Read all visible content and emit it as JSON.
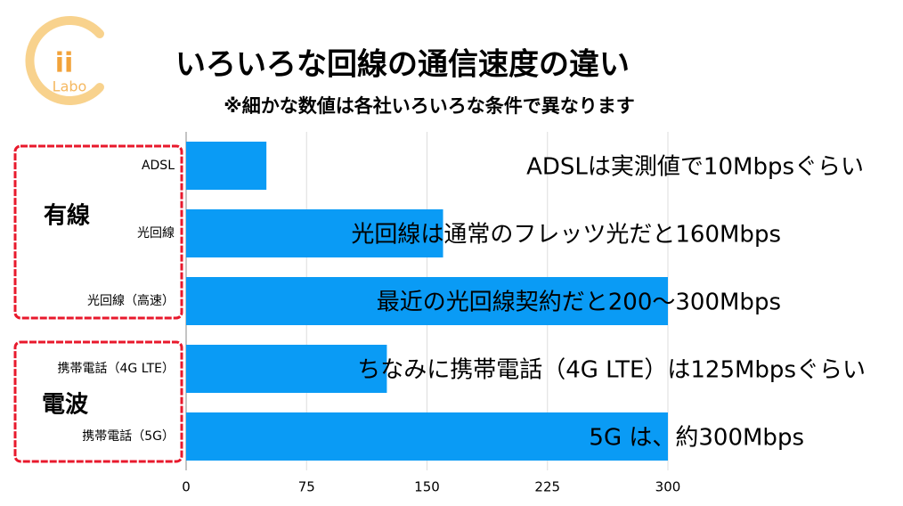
{
  "logo": {
    "text": "ii",
    "sub": "Labo"
  },
  "chart_data": {
    "type": "bar",
    "orientation": "horizontal",
    "title": "いろいろな回線の通信速度の違い",
    "subtitle": "※細かな数値は各社いろいろな条件で異なります",
    "categories": [
      "ADSL",
      "光回線",
      "光回線（高速）",
      "携帯電話（4G LTE）",
      "携帯電話（5G）"
    ],
    "values": [
      50,
      160,
      300,
      125,
      300
    ],
    "color": "#0a9bf5",
    "annotations": [
      "ADSLは実測値で10Mbpsぐらい",
      "光回線は通常のフレッツ光だと160Mbps",
      "最近の光回線契約だと200～300Mbps",
      "ちなみに携帯電話（4G LTE）は125Mbpsぐらい",
      "5G は、約300Mbps"
    ],
    "group_labels": [
      "有線",
      "電波"
    ],
    "xlim": [
      0,
      300
    ],
    "xticks": [
      0,
      75,
      150,
      225,
      300
    ],
    "grid": true
  }
}
